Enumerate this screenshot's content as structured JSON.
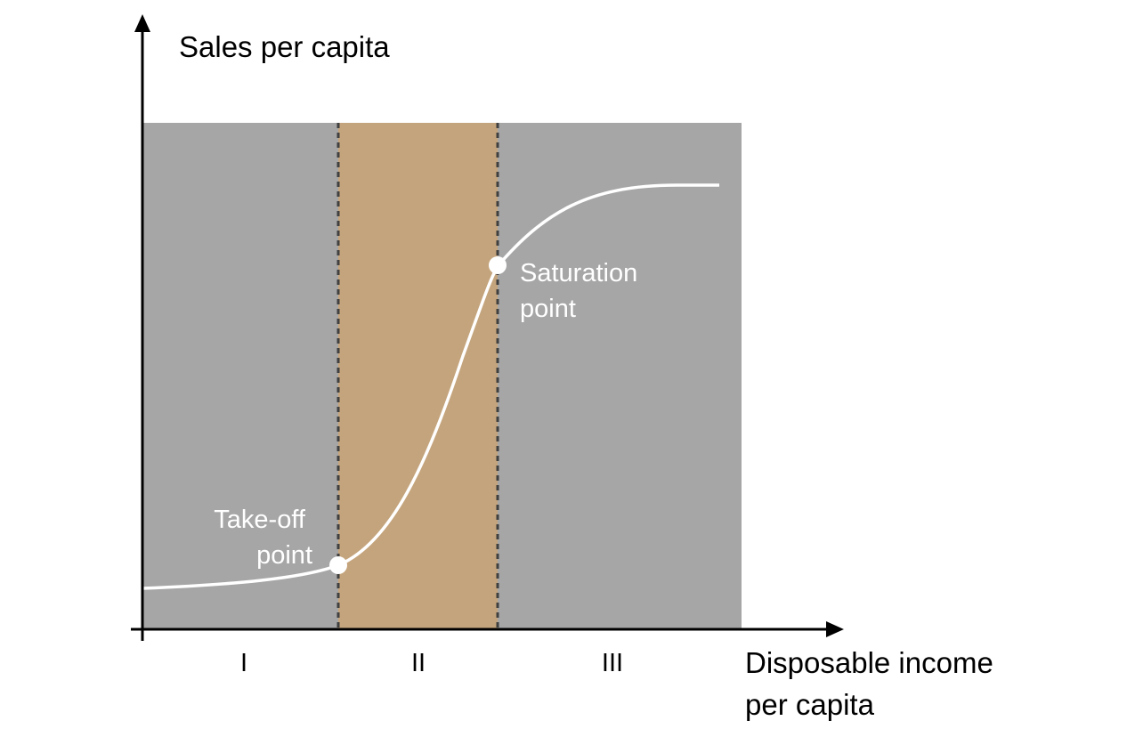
{
  "diagram": {
    "y_axis_label": "Sales per capita",
    "x_axis_label_lines": [
      "Disposable income",
      "per capita"
    ],
    "regions": [
      {
        "label": "I",
        "color": "#a6a6a6"
      },
      {
        "label": "II",
        "color": "#c4a47c"
      },
      {
        "label": "III",
        "color": "#a6a6a6"
      }
    ],
    "points": {
      "takeoff": {
        "label_lines": [
          "Take-off",
          "point"
        ]
      },
      "saturation": {
        "label_lines": [
          "Saturation",
          "point"
        ]
      }
    },
    "colors": {
      "curve": "#ffffff",
      "divider": "#404040",
      "axis": "#000000"
    }
  }
}
